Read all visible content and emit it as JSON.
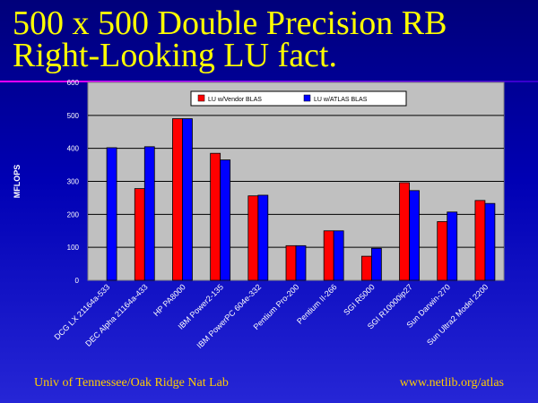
{
  "slide": {
    "title_line1": "500 x 500 Double Precision RB",
    "title_line2": "Right-Looking LU fact.",
    "footer_left": "Univ of Tennessee/Oak Ridge Nat Lab",
    "footer_right": "www.netlib.org/atlas"
  },
  "colors": {
    "vendor": "#ff0000",
    "atlas": "#0000ff",
    "plot_bg": "#c0c0c0",
    "axis_text": "#ffffff"
  },
  "chart_data": {
    "type": "bar",
    "title": "",
    "xlabel": "",
    "ylabel": "MFLOPS",
    "ylim": [
      0,
      600
    ],
    "yticks": [
      0,
      100,
      200,
      300,
      400,
      500,
      600
    ],
    "grid": true,
    "legend_position": "top-center",
    "categories": [
      "DCG LX 21164a-533",
      "DEC Alpha 21164a-433",
      "HP PA8000",
      "IBM Power2-135",
      "IBM PowerPC 604e-332",
      "Pentium Pro-200",
      "Pentium II-266",
      "SGI R5000",
      "SGI R10000ip27",
      "Sun Darwin-270",
      "Sun Ultra2 Model 2200"
    ],
    "series": [
      {
        "name": "LU w/Vendor BLAS",
        "values": [
          null,
          278,
          490,
          385,
          256,
          105,
          150,
          73,
          296,
          178,
          242
        ]
      },
      {
        "name": "LU w/ATLAS BLAS",
        "values": [
          402,
          405,
          490,
          365,
          258,
          105,
          150,
          97,
          272,
          207,
          233
        ]
      }
    ]
  }
}
